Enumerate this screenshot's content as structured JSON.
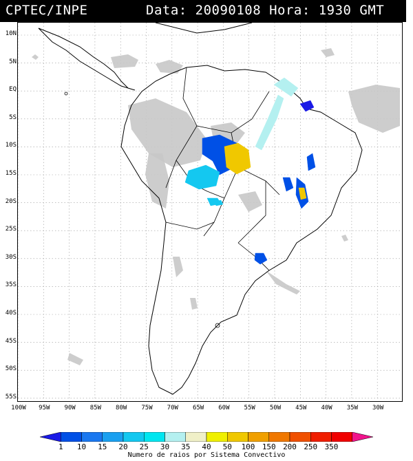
{
  "header": {
    "source": "CPTEC/INPE",
    "datetime": "Data: 20090108 Hora: 1930 GMT"
  },
  "map": {
    "lat_labels": [
      "10N",
      "5N",
      "EQ",
      "5S",
      "10S",
      "15S",
      "20S",
      "25S",
      "30S",
      "35S",
      "40S",
      "45S",
      "50S",
      "55S"
    ],
    "lon_labels": [
      "100W",
      "95W",
      "90W",
      "85W",
      "80W",
      "75W",
      "70W",
      "65W",
      "60W",
      "55W",
      "50W",
      "45W",
      "40W",
      "35W",
      "30W"
    ],
    "cloud_color": "#c8c8c8",
    "coast_color": "#000000"
  },
  "colorbar": {
    "title": "Numero de raios por Sistema Convectivo",
    "labels": [
      "1",
      "10",
      "15",
      "20",
      "25",
      "30",
      "35",
      "40",
      "50",
      "100",
      "150",
      "200",
      "250",
      "350"
    ],
    "colors": [
      "#1a1ae6",
      "#0050e6",
      "#1a78f0",
      "#1aa0f0",
      "#14c8f0",
      "#00e6f0",
      "#b4f0f0",
      "#f0f0c8",
      "#f0f000",
      "#f0c800",
      "#f0a000",
      "#f07800",
      "#f05000",
      "#f01e00",
      "#f00000",
      "#f0148c"
    ]
  },
  "systems": [
    {
      "label": "blue systems",
      "color": "#0050e6"
    },
    {
      "label": "cyan systems",
      "color": "#14c8f0"
    },
    {
      "label": "light cyan systems",
      "color": "#b4f0f0"
    },
    {
      "label": "orange systems",
      "color": "#f0c800"
    },
    {
      "label": "dark blue systems",
      "color": "#1a1ae6"
    }
  ]
}
